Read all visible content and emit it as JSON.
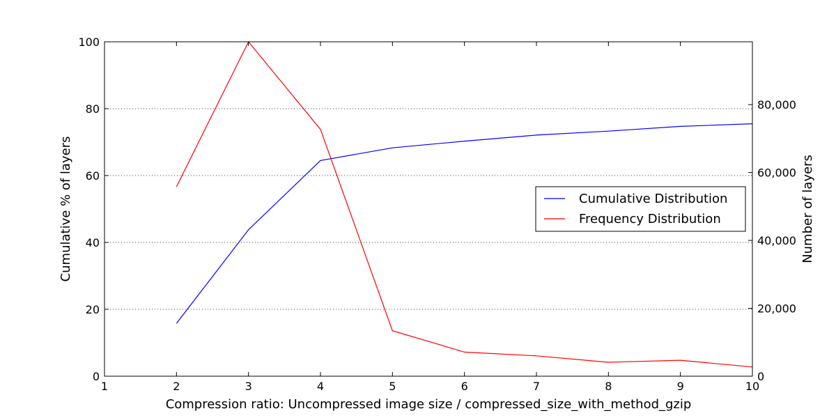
{
  "chart_data": {
    "type": "line",
    "xlabel": "Compression ratio: Uncompressed image size / compressed_size_with_method_gzip",
    "ylabel_left": "Cumulative % of layers",
    "ylabel_right": "Number of layers",
    "xlim": [
      1,
      10
    ],
    "ylim_left": [
      0,
      100
    ],
    "ylim_right": [
      0,
      98500
    ],
    "x_ticks": [
      1,
      2,
      3,
      4,
      5,
      6,
      7,
      8,
      9,
      10
    ],
    "x_tick_labels": [
      "1",
      "2",
      "3",
      "4",
      "5",
      "6",
      "7",
      "8",
      "9",
      "10"
    ],
    "y_left_ticks": [
      0,
      20,
      40,
      60,
      80,
      100
    ],
    "y_left_tick_labels": [
      "0",
      "20",
      "40",
      "60",
      "80",
      "100"
    ],
    "y_right_ticks": [
      0,
      20000,
      40000,
      60000,
      80000
    ],
    "y_right_tick_labels": [
      "0",
      "20,000",
      "40,000",
      "60,000",
      "80,000"
    ],
    "grid": "horizontal dotted",
    "legend_position": "center-right",
    "series": [
      {
        "name": "Cumulative Distribution",
        "axis": "left",
        "color": "#0000ff",
        "x": [
          2,
          3,
          4,
          5,
          6,
          7,
          8,
          9,
          10
        ],
        "values": [
          15.8,
          43.8,
          64.5,
          68.3,
          70.3,
          72.1,
          73.3,
          74.7,
          75.5
        ]
      },
      {
        "name": "Frequency Distribution",
        "axis": "right",
        "color": "#ff0000",
        "x": [
          2,
          3,
          4,
          5,
          6,
          7,
          8,
          9,
          10
        ],
        "values": [
          55800,
          98500,
          72700,
          13400,
          7100,
          6000,
          4100,
          4700,
          2700
        ]
      }
    ]
  }
}
